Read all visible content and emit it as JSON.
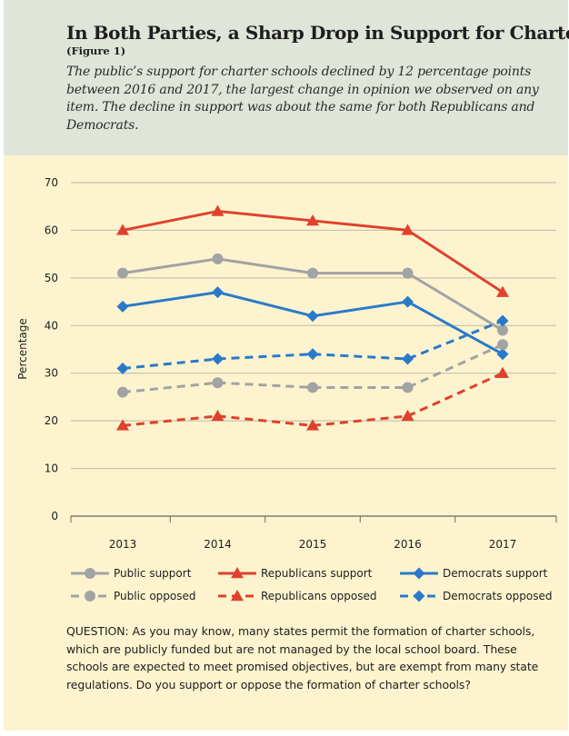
{
  "header": {
    "title": "In Both Parties, a Sharp Drop in Support for Charters",
    "figure_ref": "(Figure 1)",
    "subtitle": "The public’s support for charter schools declined by 12 percentage points between 2016 and 2017, the largest change in opinion we observed on any item. The decline in support was about the same for both Republicans and Democrats."
  },
  "question": "QUESTION: As you may know, many states permit the formation of charter schools, which are publicly funded but are not managed by the local school board. These schools are expected to meet promised objectives, but are exempt from many state regulations. Do you support or oppose the formation of charter schools?",
  "colors": {
    "public": "#a2a3a5",
    "republicans": "#e0412c",
    "democrats": "#2a7ac9",
    "grid": "#bdb9a4",
    "header_bg": "#dfe5d8",
    "panel_bg": "#fdf4cf"
  },
  "chart_data": {
    "type": "line",
    "x": [
      "2013",
      "2014",
      "2015",
      "2016",
      "2017"
    ],
    "ylabel": "Percentage",
    "ylim": [
      0,
      70
    ],
    "yticks": [
      0,
      10,
      20,
      30,
      40,
      50,
      60,
      70
    ],
    "grid": true,
    "legend_position": "bottom",
    "series": [
      {
        "name": "Public support",
        "values": [
          51,
          54,
          51,
          51,
          39
        ],
        "color": "#a2a3a5",
        "marker": "circle",
        "dash": false
      },
      {
        "name": "Republicans support",
        "values": [
          60,
          64,
          62,
          60,
          47
        ],
        "color": "#e0412c",
        "marker": "triangle",
        "dash": false
      },
      {
        "name": "Democrats support",
        "values": [
          44,
          47,
          42,
          45,
          34
        ],
        "color": "#2a7ac9",
        "marker": "diamond",
        "dash": false
      },
      {
        "name": "Public opposed",
        "values": [
          26,
          28,
          27,
          27,
          36
        ],
        "color": "#a2a3a5",
        "marker": "circle",
        "dash": true
      },
      {
        "name": "Republicans opposed",
        "values": [
          19,
          21,
          19,
          21,
          30
        ],
        "color": "#e0412c",
        "marker": "triangle",
        "dash": true
      },
      {
        "name": "Democrats opposed",
        "values": [
          31,
          33,
          34,
          33,
          41
        ],
        "color": "#2a7ac9",
        "marker": "diamond",
        "dash": true
      }
    ]
  }
}
